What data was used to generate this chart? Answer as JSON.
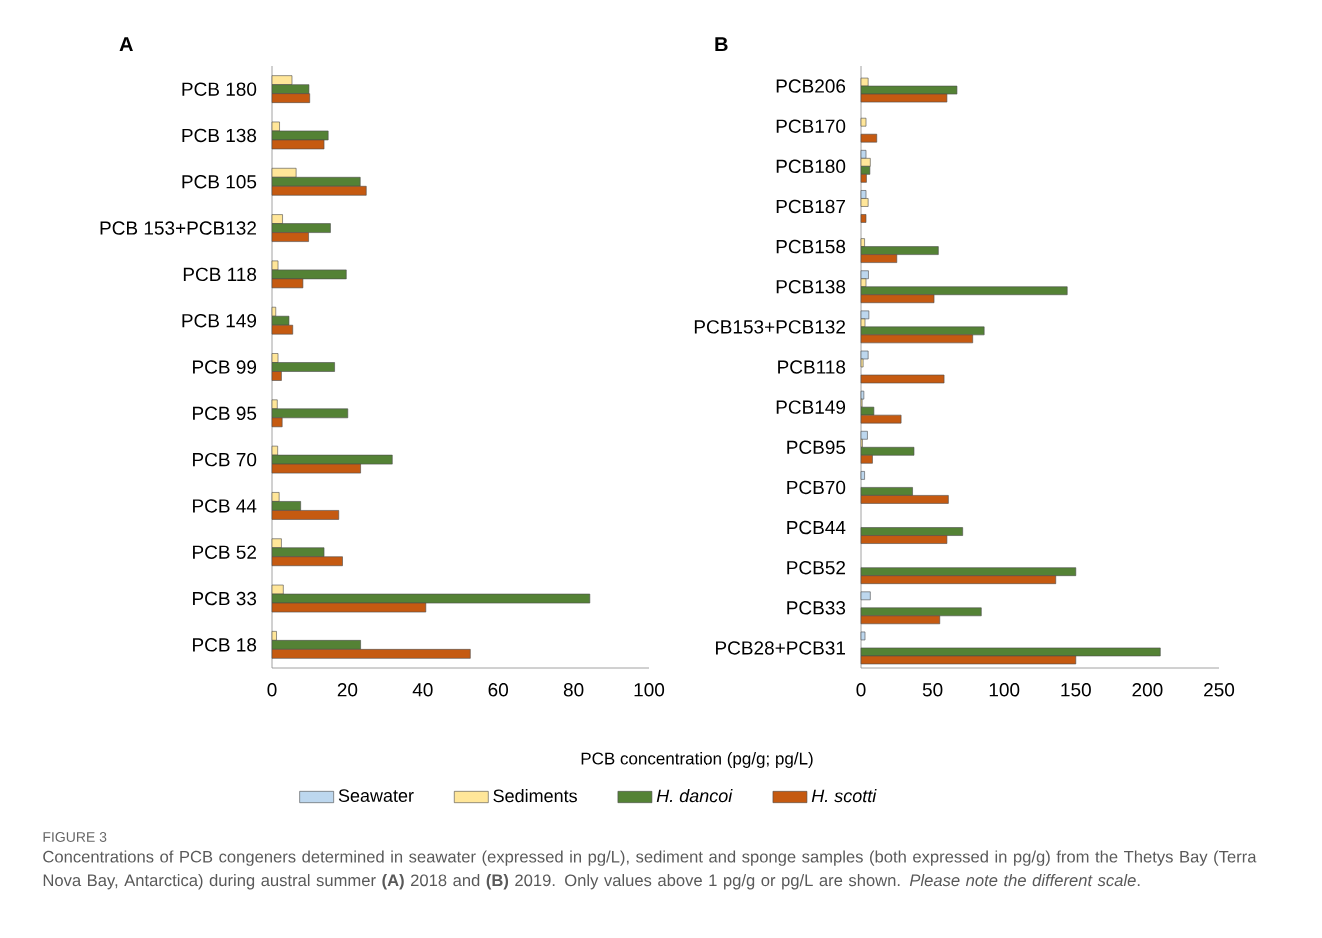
{
  "chart_data": [
    {
      "type": "bar",
      "orientation": "horizontal",
      "title": "A",
      "categories": [
        "PCB 180",
        "PCB 138",
        "PCB 105",
        "PCB 153+PCB132",
        "PCB 118",
        "PCB 149",
        "PCB 99",
        "PCB 95",
        "PCB 70",
        "PCB 44",
        "PCB 52",
        "PCB 33",
        "PCB 18"
      ],
      "series": [
        {
          "color": "#ffe699",
          "values": [
            5.3,
            2.0,
            6.4,
            2.8,
            1.6,
            1.0,
            1.6,
            1.4,
            1.5,
            1.9,
            2.5,
            3.0,
            1.2
          ]
        },
        {
          "color": "#548235",
          "values": [
            9.8,
            14.9,
            23.4,
            15.5,
            19.7,
            4.5,
            16.6,
            20.1,
            31.9,
            7.6,
            13.8,
            84.3,
            23.5
          ]
        },
        {
          "color": "#c55a11",
          "values": [
            10.0,
            13.8,
            25.0,
            9.7,
            8.2,
            5.5,
            2.5,
            2.7,
            23.5,
            17.7,
            18.7,
            40.8,
            52.6
          ]
        }
      ],
      "xlim": [
        0,
        100
      ],
      "xticks": [
        0,
        20,
        40,
        60,
        80,
        100
      ]
    },
    {
      "type": "bar",
      "orientation": "horizontal",
      "title": "B",
      "xlabel": "PCB concentration (pg/g; pg/L)",
      "legend": "bottom",
      "categories": [
        "PCB206",
        "PCB170",
        "PCB180",
        "PCB187",
        "PCB158",
        "PCB138",
        "PCB153+PCB132",
        "PCB118",
        "PCB149",
        "PCB95",
        "PCB70",
        "PCB44",
        "PCB52",
        "PCB33",
        "PCB28+PCB31"
      ],
      "series": [
        {
          "name": "Seawater",
          "color": "#bdd7ee",
          "values": [
            null,
            null,
            3.5,
            3.5,
            null,
            5.2,
            5.5,
            5.0,
            2.0,
            4.5,
            2.5,
            null,
            null,
            6.5,
            2.8
          ]
        },
        {
          "name": "Sediments",
          "color": "#ffe699",
          "values": [
            5.0,
            3.5,
            6.5,
            5.0,
            2.5,
            3.5,
            2.8,
            1.5,
            0.8,
            1.0,
            null,
            null,
            null,
            null,
            null
          ]
        },
        {
          "name": "*H. dancoi*",
          "color": "#548235",
          "values": [
            67,
            null,
            6.2,
            null,
            54,
            144,
            86,
            null,
            9,
            37,
            36,
            71,
            150,
            84,
            209
          ]
        },
        {
          "name": "*H. scotti*",
          "color": "#c55a11",
          "values": [
            60,
            11,
            3.8,
            3.5,
            25,
            51,
            78,
            58,
            28,
            8,
            61,
            60,
            136,
            55,
            150
          ]
        }
      ],
      "xlim": [
        0,
        250
      ],
      "xticks": [
        0,
        50,
        100,
        150,
        200,
        250
      ],
      "annotations": [
        "FIGURE 3",
        "Concentrations of PCB congeners determined in seawater (expressed in pg/L), sediment and sponge samples (both expressed in pg/g) from the Thetys Bay (Terra Nova Bay, Antarctica) during austral summer **(A)** 2018 and **(B)** 2019. Only values above 1 pg/g or pg/L are shown. *Please note the different scale*."
      ]
    }
  ]
}
